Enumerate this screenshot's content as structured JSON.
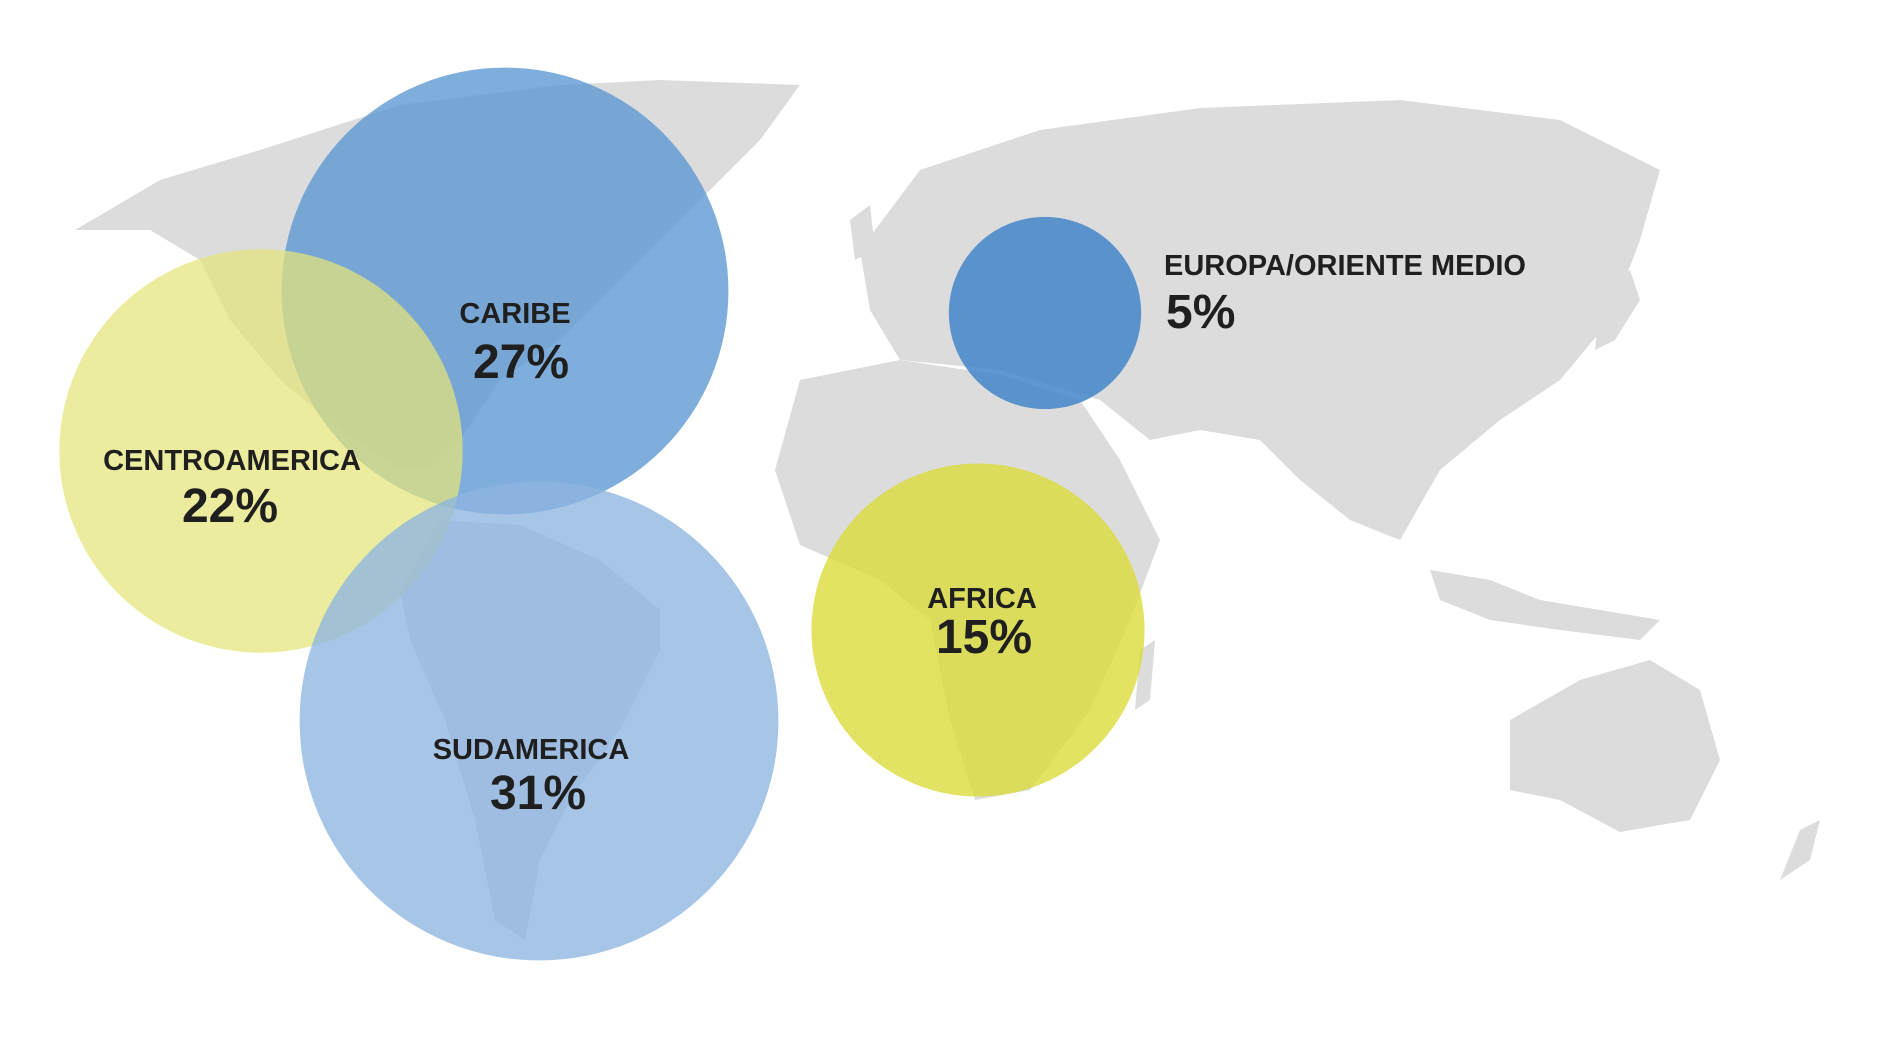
{
  "regions": [
    {
      "label": "CARIBE",
      "value": 27,
      "value_label": "27%",
      "color": "#5b97d2"
    },
    {
      "label": "CENTROAMERICA",
      "value": 22,
      "value_label": "22%",
      "color": "#e4e47a"
    },
    {
      "label": "SUDAMERICA",
      "value": 31,
      "value_label": "31%",
      "color": "#8db5e0"
    },
    {
      "label": "AFRICA",
      "value": 15,
      "value_label": "15%",
      "color": "#dcdc3c"
    },
    {
      "label": "EUROPA/ORIENTE MEDIO",
      "value": 5,
      "value_label": "5%",
      "color": "#4386c8"
    }
  ]
}
